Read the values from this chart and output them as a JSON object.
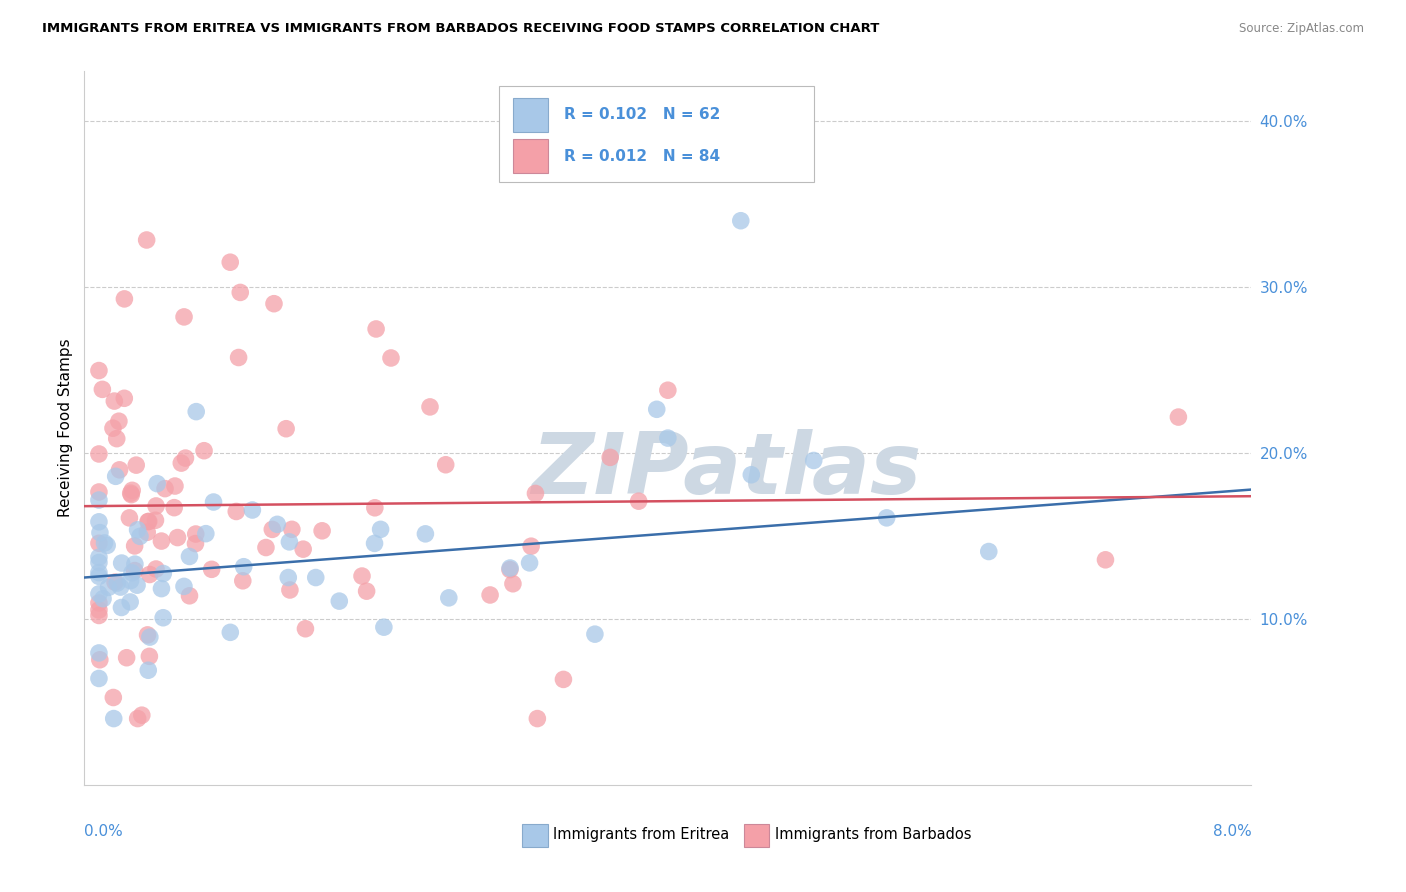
{
  "title": "IMMIGRANTS FROM ERITREA VS IMMIGRANTS FROM BARBADOS RECEIVING FOOD STAMPS CORRELATION CHART",
  "source": "Source: ZipAtlas.com",
  "ylabel": "Receiving Food Stamps",
  "xlim": [
    0.0,
    0.08
  ],
  "ylim": [
    0.0,
    0.42
  ],
  "watermark": "ZIPatlas",
  "eritrea_color": "#a8c8e8",
  "barbados_color": "#f4a0a8",
  "eritrea_line_color": "#3a6eaa",
  "barbados_line_color": "#d45060",
  "ytick_color": "#4a90d9",
  "xtick_color": "#4a90d9",
  "grid_color": "#cccccc",
  "legend_eritrea": "R = 0.102   N = 62",
  "legend_barbados": "R = 0.012   N = 84",
  "legend_r_color": "#4a90d9",
  "legend_n_color": "#dd4444",
  "bottom_legend_eritrea": "Immigrants from Eritrea",
  "bottom_legend_barbados": "Immigrants from Barbados"
}
